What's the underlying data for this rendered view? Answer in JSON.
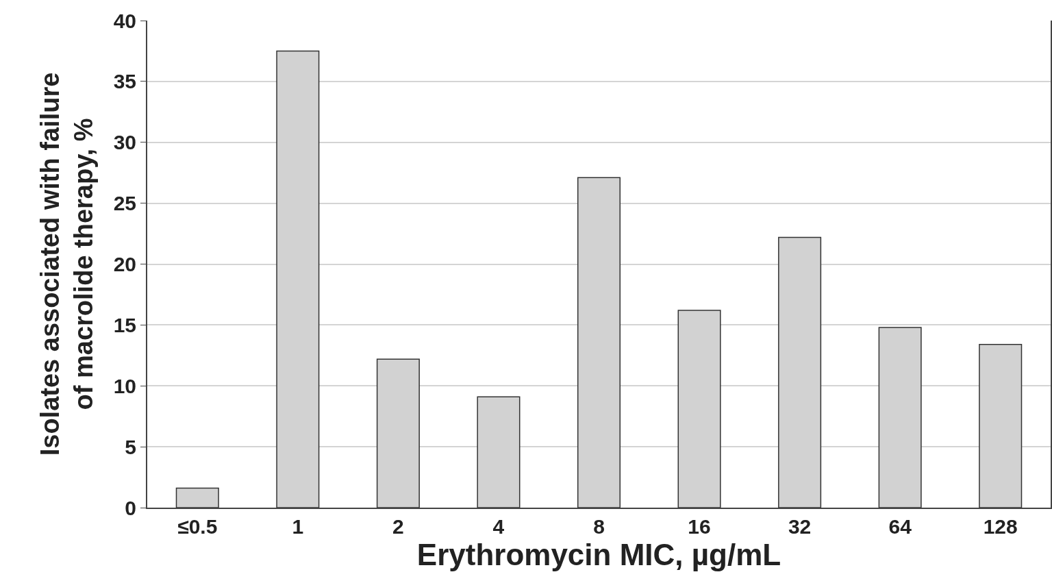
{
  "chart_data": {
    "type": "bar",
    "xlabel": "Erythromycin MIC, µg/mL",
    "ylabel": "Isolates associated with failure\nof macrolide therapy, %",
    "categories": [
      "≤0.5",
      "1",
      "2",
      "4",
      "8",
      "16",
      "32",
      "64",
      "128"
    ],
    "values": [
      1.6,
      37.5,
      12.2,
      9.1,
      27.1,
      16.2,
      22.2,
      14.8,
      13.4
    ],
    "color": "#d2d2d2",
    "ylim": [
      0,
      40
    ],
    "yticks": [
      0,
      5,
      10,
      15,
      20,
      25,
      30,
      35,
      40
    ],
    "grid": "y"
  }
}
